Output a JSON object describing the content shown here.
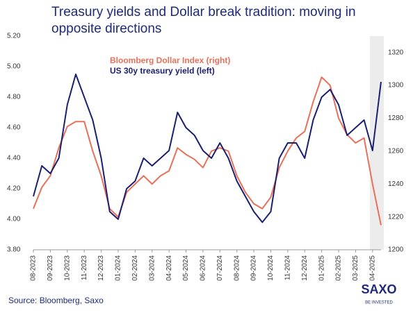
{
  "chart_data": {
    "type": "line",
    "title": "Treasury yields and Dollar break tradition: moving in opposite directions",
    "source": "Source: Bloomberg, Saxo",
    "logo": "SAXO",
    "tagline": "BE INVESTED",
    "categories": [
      "08-2023",
      null,
      "09-2023",
      null,
      "10-2023",
      null,
      "11-2023",
      null,
      "12-2023",
      null,
      "01-2024",
      null,
      "02-2024",
      null,
      "03-2024",
      null,
      "04-2024",
      null,
      "05-2024",
      null,
      "06-2024",
      null,
      "07-2024",
      null,
      "08-2024",
      null,
      "09-2024",
      null,
      "10-2024",
      null,
      "11-2024",
      null,
      "12-2024",
      null,
      "01-2025",
      null,
      "02-2025",
      null,
      "03-2025",
      null,
      "04-2025",
      null
    ],
    "series": [
      {
        "name": "Bloomberg Dollar Index (right)",
        "color": "#e8705a",
        "axis": "y2",
        "values": [
          1225,
          1238,
          1245,
          1262,
          1275,
          1278,
          1278,
          1260,
          1245,
          1225,
          1220,
          1235,
          1240,
          1245,
          1240,
          1245,
          1248,
          1262,
          1258,
          1255,
          1250,
          1260,
          1262,
          1260,
          1245,
          1235,
          1228,
          1225,
          1232,
          1250,
          1260,
          1268,
          1272,
          1290,
          1305,
          1300,
          1280,
          1270,
          1265,
          1268,
          1240,
          1215
        ]
      },
      {
        "name": "US 30y treasury yield (left)",
        "color": "#1a1f6e",
        "values": [
          4.15,
          4.35,
          4.3,
          4.4,
          4.75,
          4.95,
          4.8,
          4.65,
          4.4,
          4.05,
          4.0,
          4.2,
          4.25,
          4.4,
          4.35,
          4.4,
          4.45,
          4.7,
          4.6,
          4.55,
          4.45,
          4.4,
          4.5,
          4.4,
          4.25,
          4.15,
          4.05,
          3.98,
          4.05,
          4.4,
          4.5,
          4.5,
          4.4,
          4.65,
          4.8,
          4.85,
          4.75,
          4.55,
          4.6,
          4.65,
          4.45,
          4.9
        ]
      }
    ],
    "ylim": [
      3.8,
      5.2
    ],
    "yticks": [
      {
        "value": 3.8,
        "label": "3.80"
      },
      {
        "value": 4.0,
        "label": "4.00"
      },
      {
        "value": 4.2,
        "label": "4.20"
      },
      {
        "value": 4.4,
        "label": "4.40"
      },
      {
        "value": 4.6,
        "label": "4.60"
      },
      {
        "value": 4.8,
        "label": "4.80"
      },
      {
        "value": 5.0,
        "label": "5.00"
      },
      {
        "value": 5.2,
        "label": "5.20"
      }
    ],
    "y2lim": [
      1200,
      1330
    ],
    "y2ticks": [
      1200,
      1220,
      1240,
      1260,
      1280,
      1300,
      1320
    ]
  }
}
